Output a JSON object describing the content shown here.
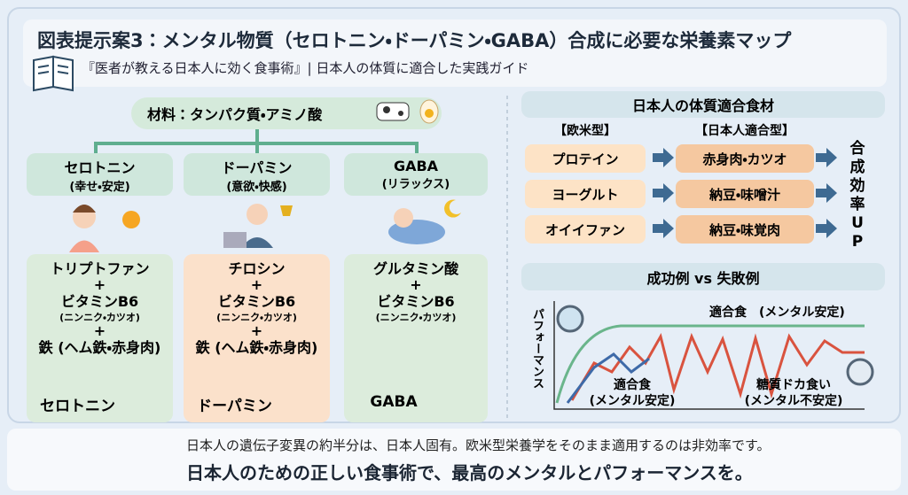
{
  "header": {
    "title": "図表提示案3：メンタル物質（セロトニン・ドーパミン・GABA）合成に必要な栄養素マップ",
    "subtitle": "『医者が教える日本人に効く食事術』| 日本人の体質に適合した実践ガイド"
  },
  "materials": "材料：タンパク質・アミノ酸",
  "pathways": [
    {
      "name": "セロトニン",
      "effect": "(幸せ・安定)",
      "lines": [
        "トリプトファン",
        "+",
        "ビタミンB6",
        "(ニンニク・カツオ)",
        "+",
        "鉄 (ヘム鉄・赤身肉)"
      ],
      "result": "セロトニン"
    },
    {
      "name": "ドーパミン",
      "effect": "(意欲・快感)",
      "lines": [
        "チロシン",
        "+",
        "ビタミンB6",
        "(ニンニク・カツオ)",
        "+",
        "鉄 (ヘム鉄・赤身肉)"
      ],
      "result": "ドーパミン"
    },
    {
      "name": "GABA",
      "effect": "(リラックス)",
      "lines": [
        "グルタミン酸",
        "+",
        "ビタミンB6",
        "(ニンニク・カツオ)"
      ],
      "result": "GABA"
    }
  ],
  "foods": {
    "title": "日本人の体質適合食材",
    "western_header": "【欧米型】",
    "japanese_header": "【日本人適合型】",
    "rows": [
      [
        "プロテイン",
        "赤身肉・カツオ"
      ],
      [
        "ヨーグルト",
        "納豆・味噌汁"
      ],
      [
        "オイイファン",
        "納豆・味覚肉"
      ]
    ],
    "result": "合成効率UP"
  },
  "comparison": {
    "title": "成功例 vs 失敗例",
    "y_label": "パフォーマンス",
    "success_label": "適合食　(メンタル安定)",
    "mid_label": [
      "適合食",
      "(メンタル安定)"
    ],
    "fail_label": [
      "糖質ドカ食い",
      "(メンタル不安定)"
    ]
  },
  "footer": {
    "line1": "日本人の遺伝子変異の約半分は、日本人固有。欧米型栄養学をそのまま適用するのは非効率です。",
    "line2": "日本人のための正しい食事術で、最高のメンタルとパフォーマンスを。"
  }
}
